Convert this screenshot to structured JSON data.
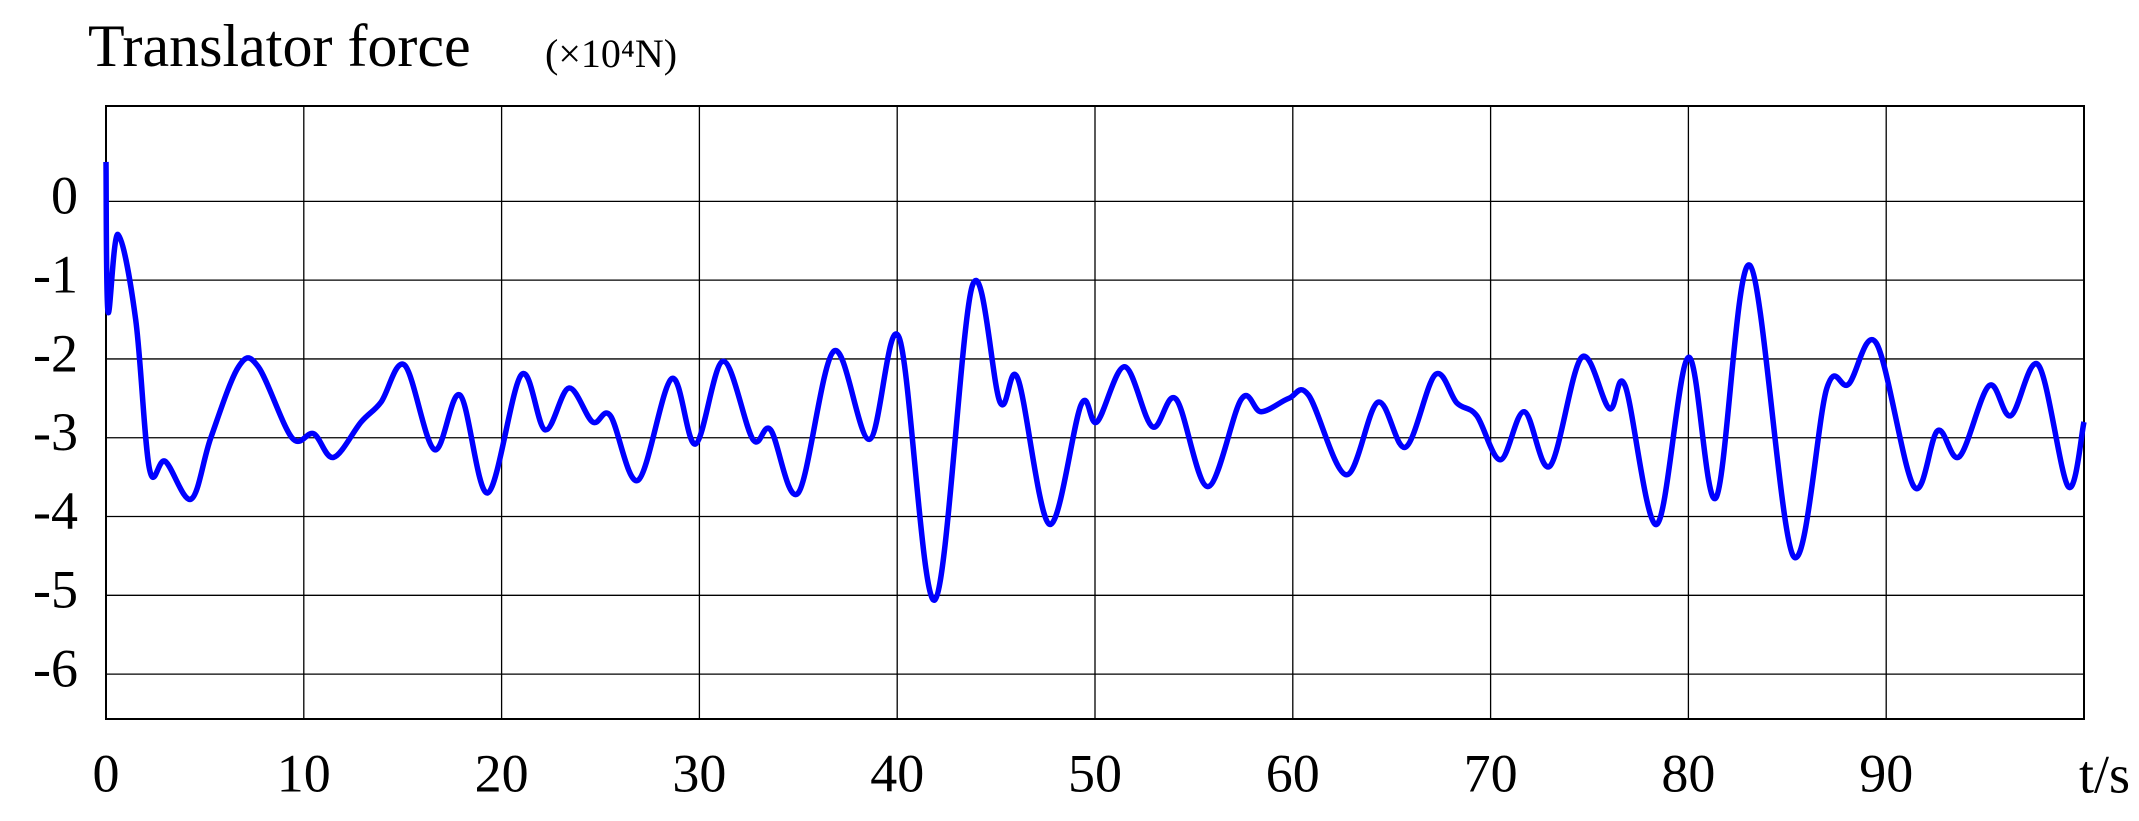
{
  "chart_data": {
    "type": "line",
    "title": "Translator force",
    "unit": "(×10⁴N)",
    "x_label": "t/s",
    "xlim": [
      0,
      100
    ],
    "ylim": [
      -6.57,
      1.21
    ],
    "xticks": [
      0,
      10,
      20,
      30,
      40,
      50,
      60,
      70,
      80,
      90
    ],
    "yticks": [
      -6,
      -5,
      -4,
      -3,
      -2,
      -1,
      0
    ],
    "grid": true,
    "x": [
      0,
      0.1,
      0.6,
      1.5,
      2.2,
      3,
      4.3,
      5.3,
      6.7,
      7.7,
      9.4,
      10.5,
      11.5,
      12.9,
      13.9,
      15.1,
      16.6,
      17.9,
      19.3,
      21,
      22.2,
      23.4,
      24.6,
      25.5,
      26.9,
      28.6,
      29.8,
      31.2,
      32.7,
      33.6,
      35,
      36.8,
      38.6,
      40.1,
      41.9,
      43.8,
      45.2,
      46.1,
      47.7,
      49.3,
      50.1,
      51.5,
      52.9,
      54.1,
      55.7,
      57.4,
      58.4,
      59.8,
      60.8,
      62.7,
      64.3,
      65.7,
      67.2,
      68.3,
      69.3,
      70.5,
      71.7,
      73,
      74.6,
      76,
      76.8,
      78.4,
      80,
      81.4,
      83.1,
      85.3,
      87,
      88.1,
      89.5,
      91.4,
      92.6,
      93.7,
      95.2,
      96.3,
      97.7,
      99.2,
      100
    ],
    "series": [
      {
        "name": "Translator force",
        "color": "#0000ff",
        "values": [
          0.5,
          -1.4,
          -0.42,
          -1.5,
          -3.4,
          -3.3,
          -3.78,
          -3.0,
          -2.1,
          -2.1,
          -3.0,
          -2.95,
          -3.25,
          -2.8,
          -2.55,
          -2.08,
          -3.15,
          -2.46,
          -3.7,
          -2.2,
          -2.9,
          -2.37,
          -2.8,
          -2.72,
          -3.54,
          -2.25,
          -3.08,
          -2.03,
          -3.02,
          -2.9,
          -3.7,
          -1.9,
          -3.02,
          -1.73,
          -5.06,
          -1.07,
          -2.55,
          -2.25,
          -4.1,
          -2.58,
          -2.8,
          -2.1,
          -2.86,
          -2.51,
          -3.62,
          -2.51,
          -2.67,
          -2.5,
          -2.46,
          -3.47,
          -2.55,
          -3.12,
          -2.2,
          -2.56,
          -2.72,
          -3.28,
          -2.67,
          -3.36,
          -1.98,
          -2.63,
          -2.34,
          -4.1,
          -1.98,
          -3.76,
          -0.81,
          -4.5,
          -2.37,
          -2.32,
          -1.8,
          -3.62,
          -2.91,
          -3.24,
          -2.34,
          -2.72,
          -2.08,
          -3.62,
          -2.8
        ]
      }
    ]
  }
}
